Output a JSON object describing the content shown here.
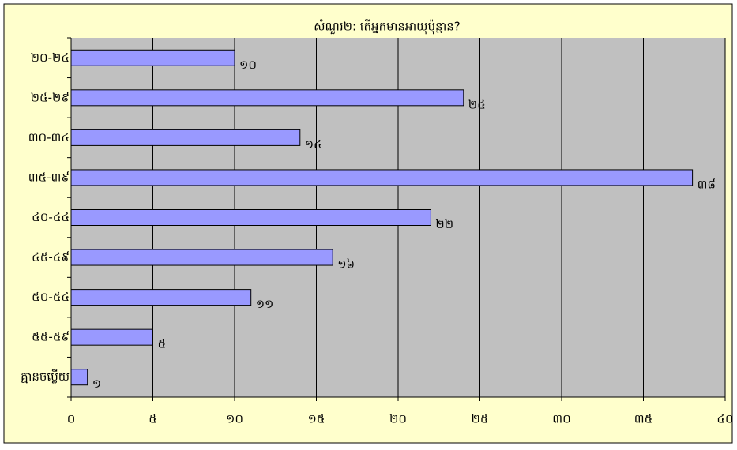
{
  "chart_data": {
    "type": "bar",
    "orientation": "horizontal",
    "title": "សំណួរ២: តើអ្នកមានអាយុប៉ុន្មាន?",
    "categories": [
      "២០-២៤",
      "២៥-២៩",
      "៣០-៣៤",
      "៣៥-៣៩",
      "៤០-៤៤",
      "៤៥-៤៩",
      "៥០-៥៤",
      "៥៥-៥៩",
      "គ្មានចម្លើយ"
    ],
    "values": [
      10,
      24,
      14,
      38,
      22,
      16,
      11,
      5,
      1
    ],
    "value_labels": [
      "១០",
      "២៤",
      "១៤",
      "៣៨",
      "២២",
      "១៦",
      "១១",
      "៥",
      "១"
    ],
    "color": "#9999ff",
    "xlim": [
      0,
      40
    ],
    "xticks": [
      {
        "value": 0,
        "label": "០"
      },
      {
        "value": 5,
        "label": "៥"
      },
      {
        "value": 10,
        "label": "១០"
      },
      {
        "value": 15,
        "label": "១៥"
      },
      {
        "value": 20,
        "label": "២០"
      },
      {
        "value": 25,
        "label": "២៥"
      },
      {
        "value": 30,
        "label": "៣០"
      },
      {
        "value": 35,
        "label": "៣៥"
      },
      {
        "value": 40,
        "label": "៤០"
      }
    ],
    "grid": true
  }
}
